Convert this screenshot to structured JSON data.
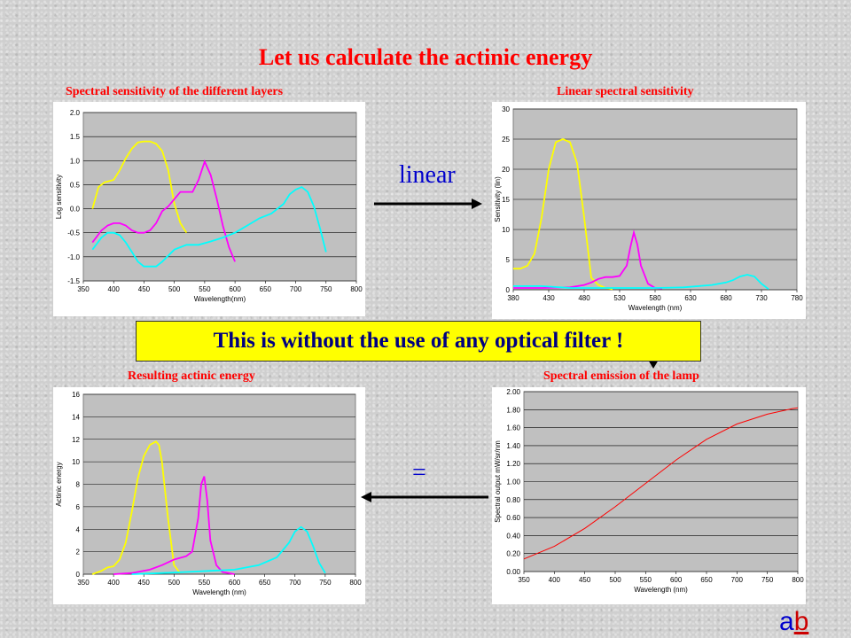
{
  "title": "Let us calculate the actinic energy",
  "operators": {
    "linear": "linear",
    "equals": "="
  },
  "banner": "This is without the use of any optical filter !",
  "logo": {
    "a": "a",
    "b": "b"
  },
  "chart_data": [
    {
      "type": "line",
      "title": "Spectral sensitivity of the different layers",
      "xlabel": "Wavelength(nm)",
      "ylabel": "Log sensitivity",
      "xlim": [
        350,
        800
      ],
      "ylim": [
        -1.5,
        2.0
      ],
      "xticks": [
        350,
        400,
        450,
        500,
        550,
        600,
        650,
        700,
        750,
        800
      ],
      "yticks": [
        -1.5,
        -1.0,
        -0.5,
        0,
        0.5,
        1.0,
        1.5,
        2.0
      ],
      "ytick_labels": [
        "-1.5",
        "-1.0",
        "-0.5",
        "0.0",
        "0.5",
        "1.0",
        "1.5",
        "2.0"
      ],
      "grid": true,
      "series": [
        {
          "color": "#ffff00",
          "x": [
            365,
            375,
            385,
            400,
            410,
            420,
            430,
            440,
            450,
            460,
            470,
            480,
            490,
            500,
            510,
            520
          ],
          "y": [
            0.0,
            0.45,
            0.55,
            0.6,
            0.8,
            1.05,
            1.25,
            1.38,
            1.4,
            1.4,
            1.35,
            1.2,
            0.8,
            0.1,
            -0.3,
            -0.5
          ]
        },
        {
          "color": "#ff00ff",
          "x": [
            365,
            380,
            390,
            400,
            410,
            420,
            430,
            440,
            450,
            460,
            470,
            480,
            490,
            500,
            510,
            520,
            530,
            540,
            550,
            560,
            570,
            580,
            590,
            600
          ],
          "y": [
            -0.7,
            -0.45,
            -0.35,
            -0.3,
            -0.3,
            -0.35,
            -0.45,
            -0.5,
            -0.5,
            -0.45,
            -0.3,
            -0.05,
            0.05,
            0.2,
            0.35,
            0.35,
            0.35,
            0.6,
            0.98,
            0.7,
            0.2,
            -0.35,
            -0.8,
            -1.1
          ]
        },
        {
          "color": "#00ffff",
          "x": [
            365,
            380,
            390,
            400,
            410,
            420,
            430,
            440,
            450,
            460,
            470,
            480,
            500,
            520,
            540,
            560,
            580,
            600,
            620,
            640,
            660,
            680,
            690,
            700,
            710,
            720,
            730,
            740,
            750
          ],
          "y": [
            -0.85,
            -0.6,
            -0.5,
            -0.5,
            -0.55,
            -0.7,
            -0.9,
            -1.1,
            -1.2,
            -1.2,
            -1.2,
            -1.1,
            -0.85,
            -0.75,
            -0.75,
            -0.68,
            -0.6,
            -0.5,
            -0.35,
            -0.2,
            -0.1,
            0.1,
            0.3,
            0.4,
            0.45,
            0.35,
            0.05,
            -0.4,
            -0.9
          ]
        }
      ]
    },
    {
      "type": "line",
      "title": "Linear spectral sensitivity",
      "xlabel": "Wavelength (nm)",
      "ylabel": "Sensitivity (lin)",
      "xlim": [
        380,
        780
      ],
      "ylim": [
        0,
        30
      ],
      "xticks": [
        380,
        430,
        480,
        530,
        580,
        630,
        680,
        730,
        780
      ],
      "yticks": [
        0,
        5,
        10,
        15,
        20,
        25,
        30
      ],
      "grid": true,
      "series": [
        {
          "color": "#ffff00",
          "x": [
            380,
            390,
            400,
            410,
            420,
            430,
            440,
            450,
            460,
            470,
            480,
            490,
            500,
            510,
            520
          ],
          "y": [
            3.5,
            3.5,
            4.0,
            6.0,
            12.0,
            20.0,
            24.5,
            25.0,
            24.5,
            21.0,
            12.0,
            2.0,
            0.8,
            0.3,
            0.1
          ]
        },
        {
          "color": "#ff00ff",
          "x": [
            380,
            420,
            460,
            480,
            490,
            500,
            510,
            520,
            530,
            540,
            545,
            550,
            555,
            560,
            570,
            580,
            590
          ],
          "y": [
            0.3,
            0.3,
            0.4,
            0.8,
            1.2,
            1.8,
            2.1,
            2.1,
            2.3,
            4.0,
            7.0,
            9.5,
            7.5,
            4.0,
            1.0,
            0.3,
            0.2
          ]
        },
        {
          "color": "#00ffff",
          "x": [
            380,
            420,
            460,
            500,
            540,
            580,
            620,
            660,
            680,
            690,
            700,
            710,
            720,
            730,
            740
          ],
          "y": [
            0.6,
            0.6,
            0.3,
            0.3,
            0.3,
            0.3,
            0.4,
            0.8,
            1.2,
            1.6,
            2.2,
            2.5,
            2.2,
            1.0,
            0.1
          ]
        }
      ]
    },
    {
      "type": "line",
      "title": "Resulting actinic energy",
      "xlabel": "Wavelength (nm)",
      "ylabel": "Actinic energy",
      "xlim": [
        350,
        800
      ],
      "ylim": [
        0,
        16
      ],
      "xticks": [
        350,
        400,
        450,
        500,
        550,
        600,
        650,
        700,
        750,
        800
      ],
      "yticks": [
        0,
        2,
        4,
        6,
        8,
        10,
        12,
        14,
        16
      ],
      "grid": true,
      "series": [
        {
          "color": "#ffff00",
          "x": [
            365,
            380,
            390,
            400,
            410,
            420,
            430,
            440,
            450,
            460,
            470,
            475,
            480,
            490,
            500,
            510
          ],
          "y": [
            0.0,
            0.3,
            0.6,
            0.7,
            1.3,
            2.8,
            5.5,
            8.5,
            10.5,
            11.5,
            11.8,
            11.5,
            10.0,
            5.0,
            0.8,
            0.1
          ]
        },
        {
          "color": "#ff00ff",
          "x": [
            400,
            430,
            460,
            480,
            500,
            520,
            530,
            540,
            545,
            550,
            555,
            560,
            570,
            580,
            600
          ],
          "y": [
            0.0,
            0.1,
            0.4,
            0.8,
            1.3,
            1.6,
            2.0,
            5.0,
            8.0,
            8.7,
            6.5,
            3.0,
            0.8,
            0.2,
            0.0
          ]
        },
        {
          "color": "#00ffff",
          "x": [
            430,
            480,
            520,
            560,
            600,
            640,
            670,
            690,
            700,
            710,
            720,
            730,
            740,
            750
          ],
          "y": [
            0.0,
            0.1,
            0.2,
            0.3,
            0.4,
            0.8,
            1.5,
            2.8,
            3.8,
            4.2,
            3.8,
            2.5,
            1.0,
            0.1
          ]
        }
      ]
    },
    {
      "type": "line",
      "title": "Spectral emission of the lamp",
      "xlabel": "Wavelength (nm)",
      "ylabel": "Spectral output mW/sr/nm",
      "xlim": [
        350,
        800
      ],
      "ylim": [
        0,
        2.0
      ],
      "xticks": [
        350,
        400,
        450,
        500,
        550,
        600,
        650,
        700,
        750,
        800
      ],
      "yticks": [
        0,
        0.2,
        0.4,
        0.6,
        0.8,
        1.0,
        1.2,
        1.4,
        1.6,
        1.8,
        2.0
      ],
      "ytick_labels": [
        "0.00",
        "0.20",
        "0.40",
        "0.60",
        "0.80",
        "1.00",
        "1.20",
        "1.40",
        "1.60",
        "1.80",
        "2.00"
      ],
      "grid": true,
      "series": [
        {
          "color": "#ff0000",
          "x": [
            350,
            400,
            450,
            500,
            550,
            600,
            650,
            700,
            750,
            790,
            800
          ],
          "y": [
            0.14,
            0.28,
            0.48,
            0.72,
            0.98,
            1.24,
            1.47,
            1.64,
            1.75,
            1.81,
            1.82
          ]
        }
      ]
    }
  ]
}
